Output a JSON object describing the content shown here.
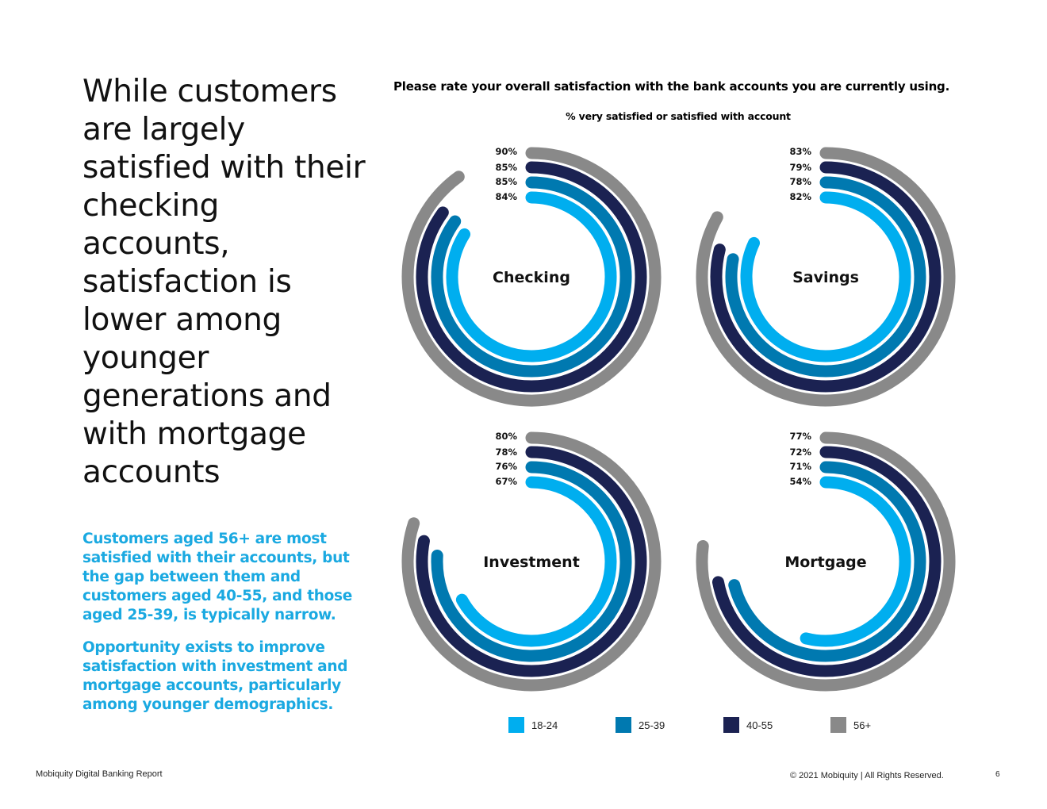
{
  "headline": "While customers are largely satisfied with their checking accounts, satisfaction is lower among younger generations and with mortgage accounts",
  "insights": [
    "Customers aged 56+ are most satisfied with their accounts, but the gap between them and customers aged 40-55, and those aged 25-39, is typically narrow.",
    "Opportunity exists to improve satisfaction with investment and mortgage accounts, particularly among younger demographics."
  ],
  "footer": {
    "left": "Mobiquity Digital Banking Report",
    "right": "© 2021 Mobiquity  |  All Rights Reserved.",
    "page": "6"
  },
  "colors": {
    "age_18_24": "#00aeef",
    "age_25_39": "#0079b0",
    "age_40_55": "#1b2252",
    "age_56_plus": "#898989"
  },
  "chart_data": {
    "type": "radial-bar",
    "title": "Please rate your overall satisfaction with the bank accounts you are currently using.",
    "subtitle": "% very satisfied or satisfied with account",
    "value_suffix": "%",
    "series_names": [
      "18-24",
      "25-39",
      "40-55",
      "56+"
    ],
    "legend_placement": "bottom",
    "charts": [
      {
        "label": "Checking",
        "values": {
          "18-24": 84,
          "25-39": 85,
          "40-55": 85,
          "56+": 90
        }
      },
      {
        "label": "Savings",
        "values": {
          "18-24": 82,
          "25-39": 78,
          "40-55": 79,
          "56+": 83
        }
      },
      {
        "label": "Investment",
        "values": {
          "18-24": 67,
          "25-39": 76,
          "40-55": 78,
          "56+": 80
        }
      },
      {
        "label": "Mortgage",
        "values": {
          "18-24": 54,
          "25-39": 71,
          "40-55": 72,
          "56+": 77
        }
      }
    ]
  }
}
